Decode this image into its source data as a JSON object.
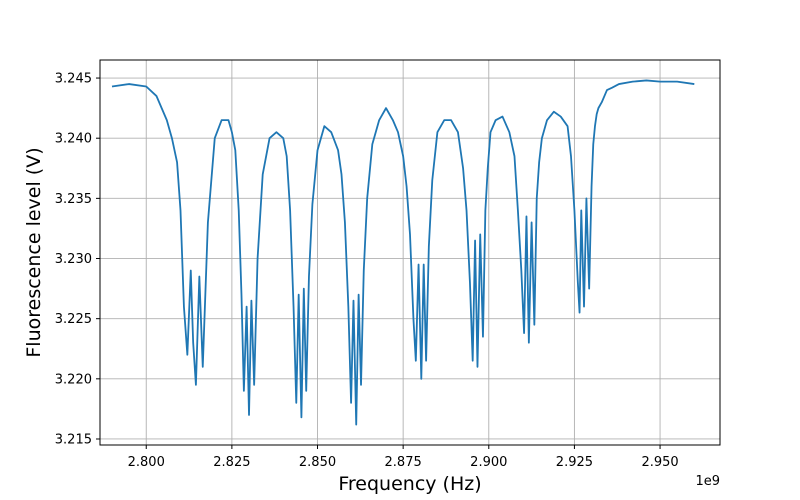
{
  "chart_data": {
    "type": "line",
    "xlabel": "Frequency (Hz)",
    "ylabel": "Fluorescence level (V)",
    "x_offset_label": "1e9",
    "xlim": [
      2.7865,
      2.9675
    ],
    "ylim": [
      3.2145,
      3.2465
    ],
    "grid": true,
    "line_color": "#1f77b4",
    "x_ticks": [
      2.8,
      2.825,
      2.85,
      2.875,
      2.9,
      2.925,
      2.95
    ],
    "x_tick_labels": [
      "2.800",
      "2.825",
      "2.850",
      "2.875",
      "2.900",
      "2.925",
      "2.950"
    ],
    "y_ticks": [
      3.215,
      3.22,
      3.225,
      3.23,
      3.235,
      3.24,
      3.245
    ],
    "y_tick_labels": [
      "3.215",
      "3.220",
      "3.225",
      "3.230",
      "3.235",
      "3.240",
      "3.245"
    ],
    "series": [
      {
        "x": [
          2.79,
          2.795,
          2.8,
          2.803,
          2.8045,
          2.806,
          2.8075,
          2.809,
          2.81,
          2.811,
          2.812,
          2.813,
          2.8137,
          2.8145,
          2.8155,
          2.8165,
          2.818,
          2.82,
          2.822,
          2.824,
          2.825,
          2.826,
          2.827,
          2.8278,
          2.8285,
          2.8293,
          2.83,
          2.8307,
          2.8315,
          2.8325,
          2.834,
          2.836,
          2.838,
          2.84,
          2.841,
          2.842,
          2.843,
          2.8438,
          2.8445,
          2.8453,
          2.846,
          2.8467,
          2.8475,
          2.8485,
          2.85,
          2.852,
          2.854,
          2.856,
          2.857,
          2.858,
          2.859,
          2.8598,
          2.8605,
          2.8613,
          2.862,
          2.8627,
          2.8635,
          2.8645,
          2.866,
          2.868,
          2.87,
          2.872,
          2.8735,
          2.875,
          2.876,
          2.877,
          2.878,
          2.8787,
          2.8795,
          2.8803,
          2.881,
          2.8817,
          2.8825,
          2.8835,
          2.885,
          2.887,
          2.889,
          2.891,
          2.8925,
          2.8935,
          2.8945,
          2.8953,
          2.896,
          2.8967,
          2.8975,
          2.8983,
          2.899,
          2.8997,
          2.9005,
          2.902,
          2.904,
          2.906,
          2.9075,
          2.9085,
          2.9095,
          2.9103,
          2.911,
          2.9117,
          2.9125,
          2.9133,
          2.914,
          2.9147,
          2.9155,
          2.917,
          2.919,
          2.921,
          2.923,
          2.924,
          2.925,
          2.926,
          2.9265,
          2.927,
          2.9278,
          2.9285,
          2.9293,
          2.93,
          2.9305,
          2.931,
          2.9315,
          2.932,
          2.933,
          2.9345,
          2.936,
          2.938,
          2.942,
          2.946,
          2.95,
          2.955,
          2.96
        ],
        "y": [
          3.2443,
          3.2445,
          3.2443,
          3.2435,
          3.2425,
          3.2415,
          3.24,
          3.238,
          3.234,
          3.226,
          3.222,
          3.229,
          3.223,
          3.2195,
          3.2285,
          3.221,
          3.233,
          3.24,
          3.2415,
          3.2415,
          3.2405,
          3.239,
          3.234,
          3.227,
          3.219,
          3.226,
          3.217,
          3.2265,
          3.2195,
          3.23,
          3.237,
          3.24,
          3.2405,
          3.24,
          3.2385,
          3.234,
          3.226,
          3.218,
          3.227,
          3.2168,
          3.2275,
          3.219,
          3.2285,
          3.2345,
          3.239,
          3.241,
          3.2405,
          3.239,
          3.237,
          3.233,
          3.226,
          3.218,
          3.2265,
          3.2162,
          3.227,
          3.2195,
          3.229,
          3.235,
          3.2395,
          3.2415,
          3.2425,
          3.2415,
          3.2405,
          3.2385,
          3.236,
          3.232,
          3.225,
          3.2215,
          3.2295,
          3.22,
          3.2295,
          3.2215,
          3.231,
          3.2365,
          3.2405,
          3.2415,
          3.2415,
          3.2405,
          3.2375,
          3.234,
          3.228,
          3.2215,
          3.2315,
          3.221,
          3.232,
          3.2235,
          3.234,
          3.2375,
          3.2405,
          3.2415,
          3.2418,
          3.2405,
          3.2385,
          3.234,
          3.229,
          3.2238,
          3.2335,
          3.223,
          3.233,
          3.2245,
          3.235,
          3.238,
          3.24,
          3.2415,
          3.2422,
          3.2418,
          3.241,
          3.2385,
          3.234,
          3.228,
          3.2255,
          3.234,
          3.226,
          3.235,
          3.2275,
          3.236,
          3.2395,
          3.241,
          3.242,
          3.2425,
          3.243,
          3.244,
          3.2442,
          3.2445,
          3.2447,
          3.2448,
          3.2447,
          3.2447,
          3.2445
        ]
      }
    ]
  }
}
